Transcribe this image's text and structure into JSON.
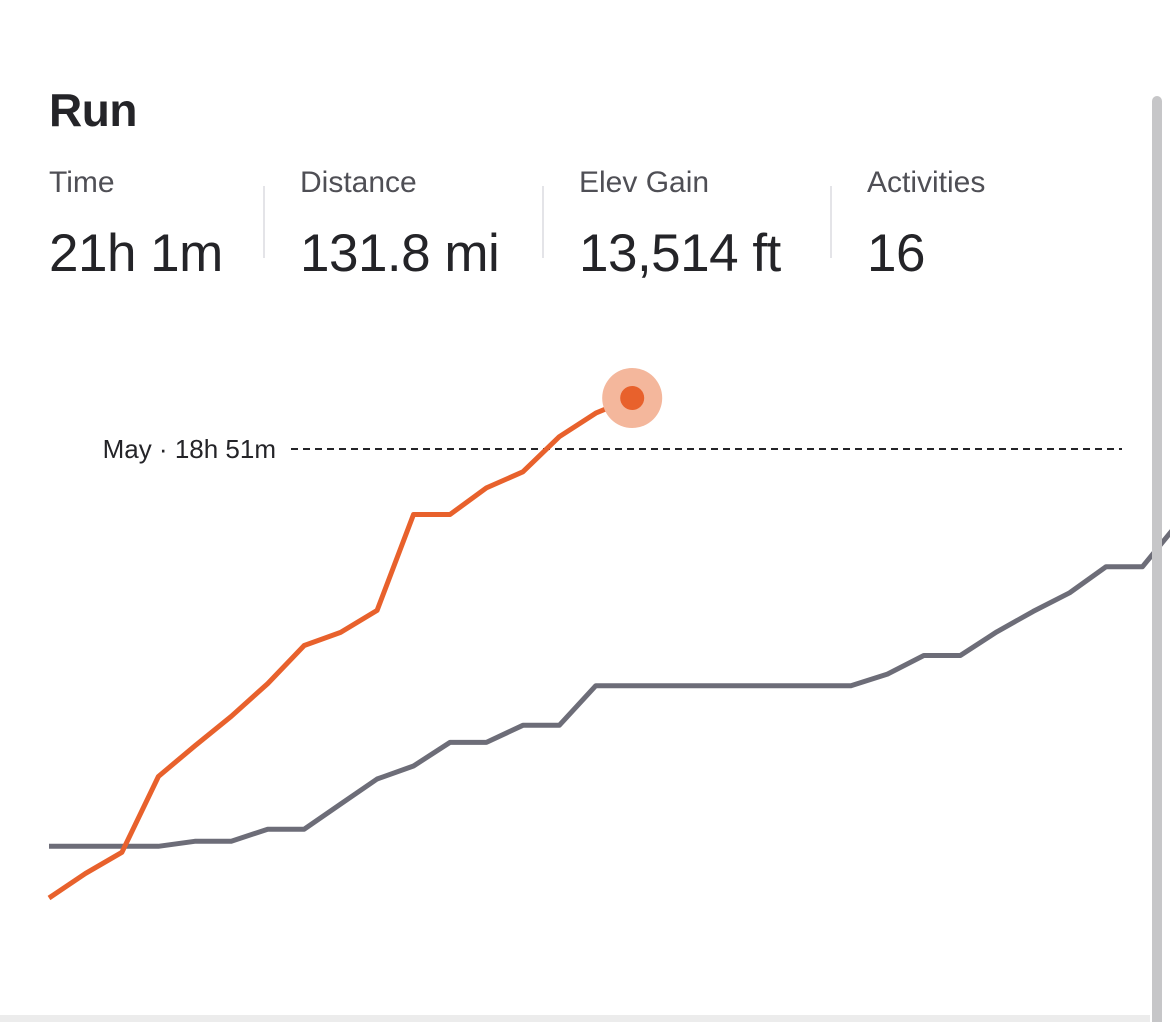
{
  "card": {
    "title": "Run"
  },
  "stats": [
    {
      "label": "Time",
      "value": "21h 1m"
    },
    {
      "label": "Distance",
      "value": "131.8 mi"
    },
    {
      "label": "Elev Gain",
      "value": "13,514 ft"
    },
    {
      "label": "Activities",
      "value": "16"
    }
  ],
  "chart_data": {
    "type": "line",
    "reference_line": {
      "label": "May · 18h 51m",
      "style": "dashed"
    },
    "series": [
      {
        "color": "#e8612c",
        "ends_with_marker": true,
        "values": [
          0.0,
          0.049,
          0.091,
          0.242,
          0.303,
          0.362,
          0.427,
          0.503,
          0.529,
          0.573,
          0.764,
          0.764,
          0.817,
          0.849,
          0.919,
          0.966,
          0.996
        ]
      },
      {
        "color": "#6d6d78",
        "ends_with_marker": false,
        "values": [
          0.103,
          0.103,
          0.103,
          0.103,
          0.113,
          0.113,
          0.137,
          0.137,
          0.187,
          0.237,
          0.263,
          0.31,
          0.31,
          0.344,
          0.344,
          0.423,
          0.423,
          0.423,
          0.423,
          0.423,
          0.423,
          0.423,
          0.423,
          0.446,
          0.483,
          0.483,
          0.53,
          0.571,
          0.608,
          0.66,
          0.66,
          0.749,
          0.749
        ]
      }
    ],
    "colors": {
      "current": "#e8612c",
      "current_halo": "#f4b79c",
      "previous": "#6d6d78",
      "reference": "#242428"
    }
  }
}
